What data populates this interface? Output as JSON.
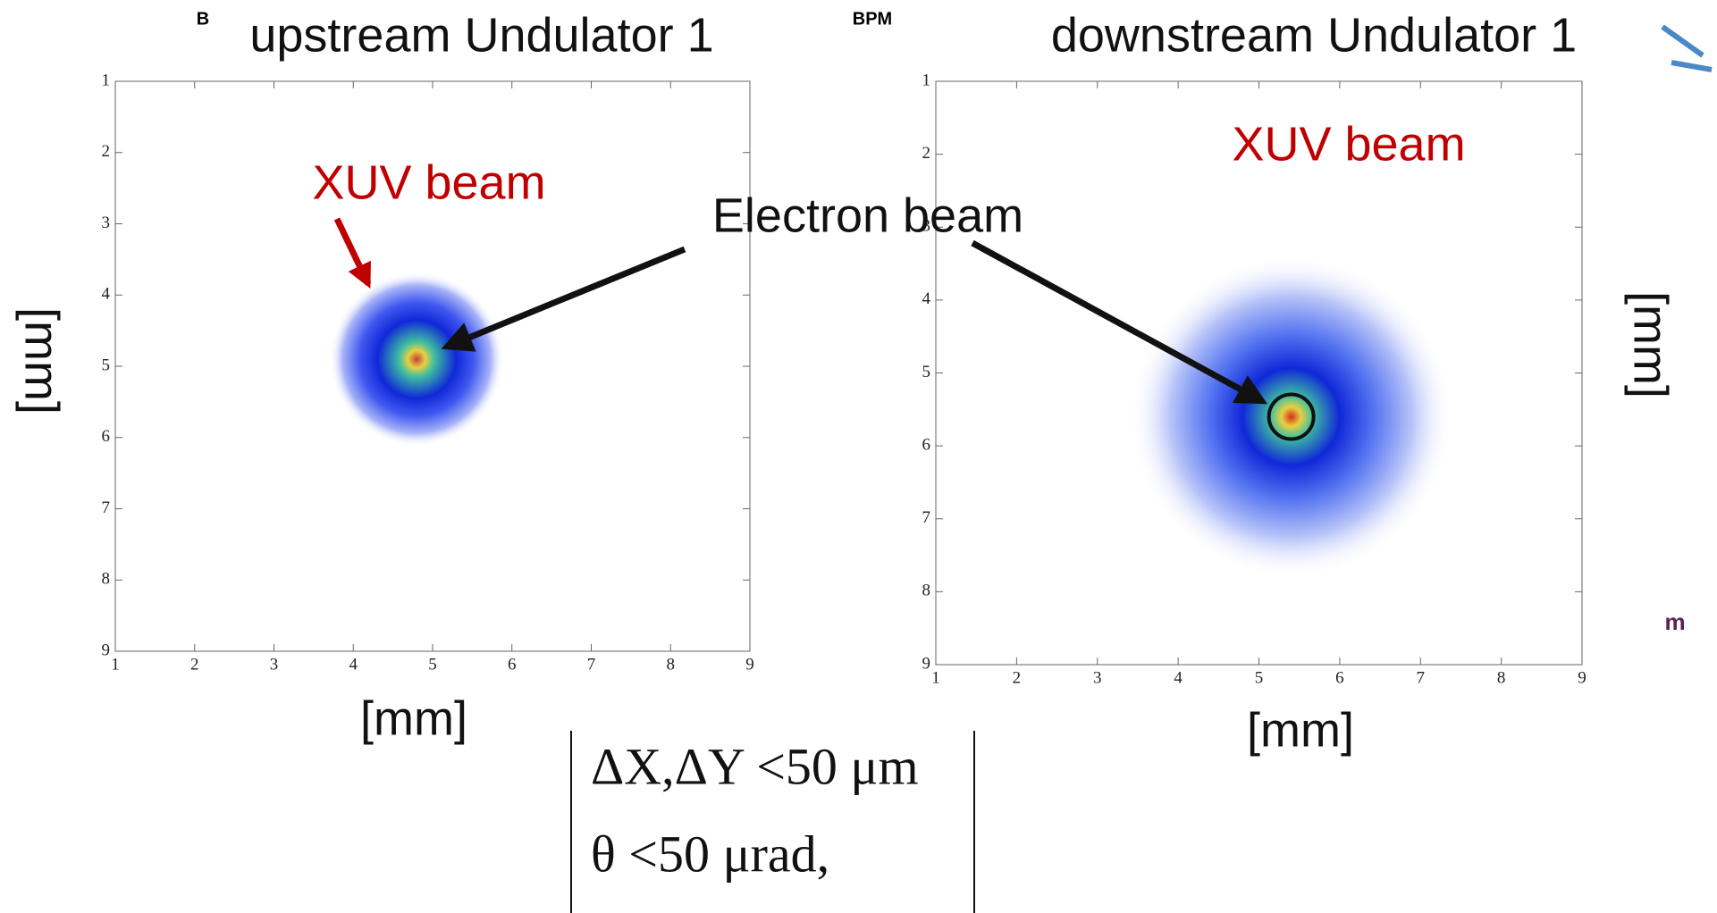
{
  "chart_data": [
    {
      "type": "image",
      "title": "upstream Undulator 1",
      "xlabel": "[mm]",
      "ylabel": "[mm]",
      "xlim": [
        1,
        9
      ],
      "ylim": [
        9,
        1
      ],
      "xticks": [
        1,
        2,
        3,
        4,
        5,
        6,
        7,
        8,
        9
      ],
      "yticks": [
        1,
        2,
        3,
        4,
        5,
        6,
        7,
        8,
        9
      ],
      "beam_center": {
        "x": 4.8,
        "y": 4.9
      },
      "spot_radius": 1.1,
      "annotation": "XUV beam"
    },
    {
      "type": "image",
      "title": "downstream Undulator 1",
      "xlabel": "[mm]",
      "ylabel": "[mm]",
      "xlim": [
        1,
        9
      ],
      "ylim": [
        9,
        1
      ],
      "xticks": [
        1,
        2,
        3,
        4,
        5,
        6,
        7,
        8,
        9
      ],
      "yticks": [
        1,
        2,
        3,
        4,
        5,
        6,
        7,
        8,
        9
      ],
      "beam_center": {
        "x": 5.4,
        "y": 5.6
      },
      "spot_radius": 2.0,
      "annotation": "XUV beam"
    }
  ],
  "annotation": "Electron beam",
  "notes": [
    "ΔX,ΔY <50 μm",
    "θ <50 μrad,"
  ],
  "fragments": {
    "left": "B",
    "middle": "BPM",
    "right": "m"
  }
}
